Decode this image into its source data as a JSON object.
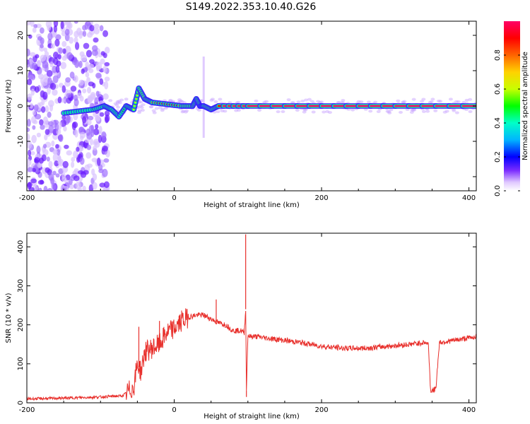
{
  "figure_title": "S149.2022.353.10.40.G26",
  "chart_data": [
    {
      "type": "heatmap",
      "title": "",
      "xlabel": "Height of straight line (km)",
      "ylabel": "Frequency (Hz)",
      "xlim": [
        -200,
        410
      ],
      "ylim": [
        -24,
        24
      ],
      "xticks": [
        -200,
        0,
        200,
        400
      ],
      "yticks": [
        -20,
        -10,
        0,
        10,
        20
      ],
      "colorbar": {
        "label": "Normalized spectral amplitude",
        "range": [
          0,
          1
        ],
        "ticks": [
          "0.0",
          "0.2",
          "0.4",
          "0.6",
          "0.8"
        ],
        "tick_values": [
          0.0,
          0.2,
          0.4,
          0.6,
          0.8
        ],
        "colormap": [
          "#ffffff",
          "#d9b3ff",
          "#7b2cff",
          "#0000ff",
          "#00b4ff",
          "#00ffc8",
          "#00ff00",
          "#c8ff00",
          "#ffd200",
          "#ff6400",
          "#ff0000",
          "#ff0066"
        ]
      },
      "noise_region_km": [
        -200,
        -90
      ],
      "main_line": {
        "x": [
          -150,
          -130,
          -110,
          -95,
          -85,
          -75,
          -65,
          -55,
          -48,
          -40,
          -30,
          -10,
          10,
          25,
          30,
          35,
          40,
          50,
          60,
          100,
          200,
          300,
          410
        ],
        "freq_hz": [
          -2,
          -1.5,
          -1,
          0,
          -1,
          -3,
          0,
          -1,
          5,
          2,
          1,
          0.5,
          0,
          0,
          2,
          0,
          0,
          -1,
          0,
          0,
          0,
          0,
          0
        ],
        "amplitude": [
          0.45,
          0.4,
          0.5,
          0.45,
          0.5,
          0.45,
          0.55,
          0.6,
          0.6,
          0.75,
          0.85,
          0.9,
          0.85,
          0.85,
          0.7,
          0.8,
          0.85,
          0.7,
          0.95,
          1.0,
          1.0,
          1.0,
          1.0
        ]
      },
      "vertical_streak_km": 40
    },
    {
      "type": "line",
      "title": "",
      "xlabel": "Height of straight line (km)",
      "ylabel": "SNR (10 * v/v)",
      "xlim": [
        -200,
        410
      ],
      "ylim": [
        0,
        435
      ],
      "xticks": [
        -200,
        0,
        200,
        400
      ],
      "yticks": [
        0,
        100,
        200,
        300,
        400
      ],
      "series": [
        {
          "color": "#e8302c",
          "x": [
            -200,
            -150,
            -100,
            -70,
            -55,
            -50,
            -45,
            -40,
            -30,
            -20,
            -10,
            0,
            10,
            20,
            30,
            40,
            50,
            60,
            70,
            80,
            90,
            95,
            97,
            98,
            100,
            102,
            110,
            130,
            150,
            170,
            200,
            230,
            260,
            290,
            320,
            340,
            345,
            348,
            355,
            360,
            380,
            410
          ],
          "y": [
            10,
            12,
            15,
            18,
            40,
            100,
            80,
            130,
            140,
            150,
            180,
            190,
            210,
            220,
            225,
            225,
            215,
            205,
            200,
            185,
            185,
            180,
            240,
            30,
            175,
            170,
            170,
            165,
            160,
            155,
            145,
            140,
            140,
            145,
            150,
            155,
            150,
            30,
            35,
            155,
            160,
            170
          ],
          "spikes": [
            {
              "x": -48,
              "y": 195
            },
            {
              "x": -20,
              "y": 210
            },
            {
              "x": 57,
              "y": 265
            },
            {
              "x": 97,
              "y": 432
            },
            {
              "x": 98,
              "y": 15
            }
          ]
        }
      ]
    }
  ]
}
